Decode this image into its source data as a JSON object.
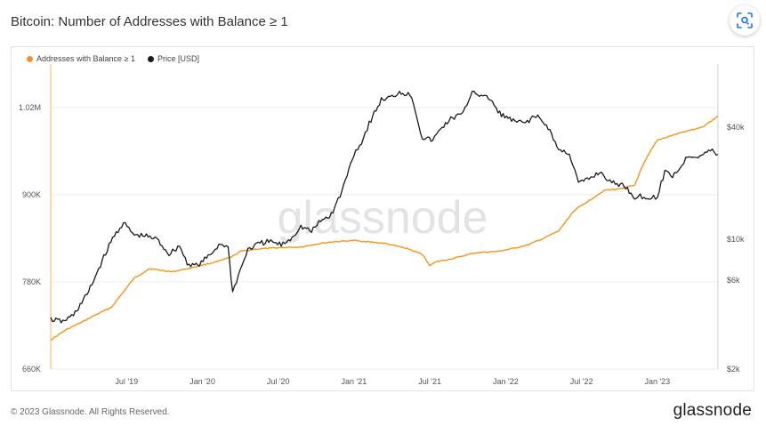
{
  "title": "Bitcoin: Number of Addresses with Balance ≥ 1",
  "watermark": "glassnode",
  "footer": "© 2023 Glassnode. All Rights Reserved.",
  "brand": "glassnode",
  "colors": {
    "addresses": "#f7931a",
    "price": "#1a1a1a",
    "grid": "#ececec"
  },
  "icons": {
    "lens": "lens-scan-icon"
  },
  "chart_data": {
    "type": "line",
    "title": "Bitcoin: Number of Addresses with Balance ≥ 1",
    "grid": true,
    "legend_placement": "top-left",
    "x_ticks": [
      "Jul '19",
      "Jan '20",
      "Jul '20",
      "Jan '21",
      "Jul '21",
      "Jan '22",
      "Jul '22",
      "Jan '23"
    ],
    "x_tick_pos": [
      2019.5,
      2020.0,
      2020.5,
      2021.0,
      2021.5,
      2022.0,
      2022.5,
      2023.0
    ],
    "x_range": [
      2019.0,
      2023.4
    ],
    "y_left": {
      "ticks": [
        "660K",
        "780K",
        "900K",
        "1.02M"
      ],
      "tick_values": [
        660000,
        780000,
        900000,
        1020000
      ],
      "range": [
        660000,
        1070000
      ]
    },
    "y_right": {
      "scale": "log",
      "ticks": [
        "$2k",
        "$6k",
        "$10k",
        "$40k"
      ],
      "tick_values": [
        2000,
        6000,
        10000,
        40000
      ],
      "range": [
        2000,
        80000
      ]
    },
    "series": [
      {
        "name": "Addresses with Balance ≥ 1",
        "axis": "left",
        "color": "#f7931a",
        "x": [
          2019.0,
          2019.1,
          2019.2,
          2019.3,
          2019.4,
          2019.55,
          2019.65,
          2019.8,
          2019.9,
          2020.0,
          2020.1,
          2020.2,
          2020.25,
          2020.35,
          2020.5,
          2020.65,
          2020.75,
          2020.85,
          2021.0,
          2021.1,
          2021.2,
          2021.35,
          2021.45,
          2021.5,
          2021.55,
          2021.65,
          2021.8,
          2021.95,
          2022.05,
          2022.15,
          2022.25,
          2022.35,
          2022.45,
          2022.55,
          2022.65,
          2022.75,
          2022.85,
          2022.9,
          2022.95,
          2023.0,
          2023.15,
          2023.3,
          2023.4
        ],
        "y": [
          700000,
          714000,
          724000,
          735000,
          745000,
          785000,
          798000,
          794000,
          798000,
          803000,
          808000,
          815000,
          822000,
          825000,
          827000,
          828000,
          832000,
          835000,
          837000,
          835000,
          833000,
          826000,
          818000,
          803000,
          808000,
          812000,
          820000,
          822000,
          826000,
          831000,
          840000,
          850000,
          878000,
          892000,
          906000,
          908000,
          913000,
          938000,
          958000,
          975000,
          985000,
          993000,
          1008000
        ]
      },
      {
        "name": "Price [USD]",
        "axis": "right",
        "color": "#1a1a1a",
        "x": [
          2019.0,
          2019.08,
          2019.15,
          2019.25,
          2019.35,
          2019.42,
          2019.48,
          2019.55,
          2019.62,
          2019.7,
          2019.78,
          2019.85,
          2019.9,
          2019.97,
          2020.05,
          2020.12,
          2020.17,
          2020.2,
          2020.25,
          2020.3,
          2020.38,
          2020.45,
          2020.52,
          2020.58,
          2020.65,
          2020.72,
          2020.78,
          2020.85,
          2020.92,
          2021.0,
          2021.05,
          2021.1,
          2021.18,
          2021.25,
          2021.3,
          2021.38,
          2021.45,
          2021.52,
          2021.58,
          2021.65,
          2021.72,
          2021.78,
          2021.85,
          2021.9,
          2021.95,
          2022.05,
          2022.12,
          2022.2,
          2022.28,
          2022.35,
          2022.42,
          2022.48,
          2022.55,
          2022.62,
          2022.7,
          2022.78,
          2022.85,
          2022.9,
          2022.95,
          2023.0,
          2023.05,
          2023.1,
          2023.15,
          2023.2,
          2023.28,
          2023.35,
          2023.4
        ],
        "y": [
          3700,
          3600,
          3900,
          5200,
          8000,
          10500,
          12200,
          10500,
          10400,
          10000,
          8300,
          9200,
          7400,
          7200,
          8200,
          9500,
          9000,
          5200,
          6800,
          8800,
          9500,
          9700,
          9300,
          10000,
          11700,
          11000,
          12500,
          13500,
          18000,
          29000,
          33000,
          42000,
          56000,
          58000,
          62000,
          59000,
          35000,
          34000,
          40000,
          45000,
          47000,
          63000,
          58000,
          57000,
          48000,
          43000,
          42000,
          46000,
          40000,
          30000,
          29000,
          20000,
          21000,
          23000,
          20000,
          19500,
          16800,
          17000,
          16500,
          17000,
          23000,
          22000,
          24000,
          28000,
          28000,
          30000,
          28500
        ]
      }
    ]
  }
}
